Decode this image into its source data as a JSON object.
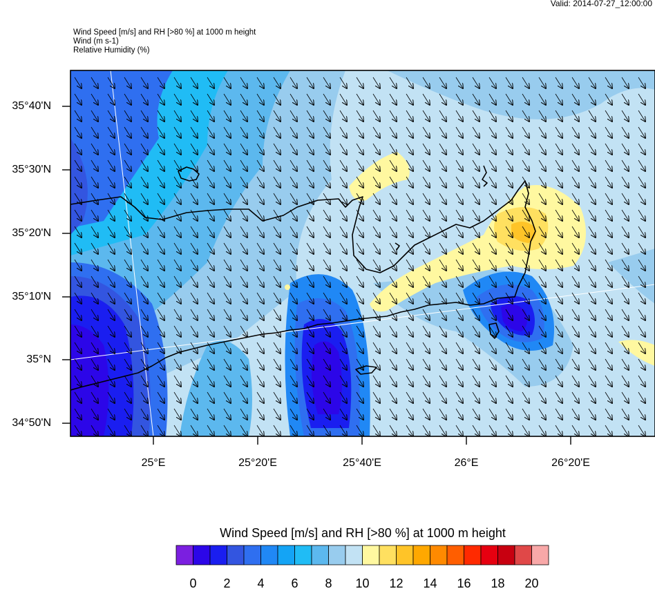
{
  "valid_time": "Valid: 2014-07-27_12:00:00",
  "header": {
    "line1": "Wind Speed [m/s] and RH [>80 %] at 1000 m height",
    "line2": "Wind   (m s-1)",
    "line3": "Relative Humidity   (%)"
  },
  "map": {
    "lat_labels": [
      "35°40'N",
      "35°30'N",
      "35°20'N",
      "35°10'N",
      "35°N",
      "34°50'N"
    ],
    "lon_labels": [
      "25°E",
      "25°20'E",
      "25°40'E",
      "26°E",
      "26°20'E"
    ],
    "region": "Crete (eastern)",
    "wind_direction": "north-westerly (arrows pointing to SSE)"
  },
  "colorbar": {
    "title": "Wind Speed [m/s] and RH [>80 %] at 1000 m height",
    "colors": [
      "#7b1fe0",
      "#2c06e8",
      "#1a1ef0",
      "#3355e0",
      "#2f6ff0",
      "#2088f5",
      "#14a4f5",
      "#20bcf5",
      "#5cb8ee",
      "#98ccee",
      "#c2e2f4",
      "#fff8a0",
      "#ffe060",
      "#ffc428",
      "#ffa800",
      "#ff8a00",
      "#ff5e00",
      "#ff2a00",
      "#e60010",
      "#c80010",
      "#e04848",
      "#f8a8a8"
    ],
    "labels": [
      "0",
      "2",
      "4",
      "6",
      "8",
      "10",
      "12",
      "14",
      "16",
      "18",
      "20"
    ]
  }
}
